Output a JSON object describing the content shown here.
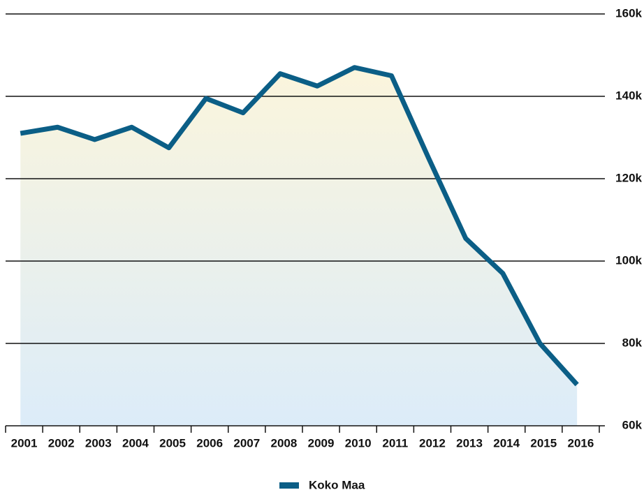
{
  "chart_data": {
    "type": "line",
    "categories": [
      "2001",
      "2002",
      "2003",
      "2004",
      "2005",
      "2006",
      "2007",
      "2008",
      "2009",
      "2010",
      "2011",
      "2012",
      "2013",
      "2014",
      "2015",
      "2016"
    ],
    "series": [
      {
        "name": "Koko Maa",
        "color": "#0b5e86",
        "values": [
          131000,
          132500,
          129500,
          132500,
          127500,
          139500,
          136000,
          145500,
          142500,
          147000,
          145000,
          125000,
          105500,
          97000,
          80000,
          70000
        ]
      }
    ],
    "ylim": [
      60000,
      160000
    ],
    "yticks": [
      {
        "value": 60000,
        "label": "60k"
      },
      {
        "value": 80000,
        "label": "80k"
      },
      {
        "value": 100000,
        "label": "100k"
      },
      {
        "value": 120000,
        "label": "120k"
      },
      {
        "value": 140000,
        "label": "140k"
      },
      {
        "value": 160000,
        "label": "160k"
      }
    ],
    "grid": true,
    "legend": "bottom",
    "area": true
  }
}
